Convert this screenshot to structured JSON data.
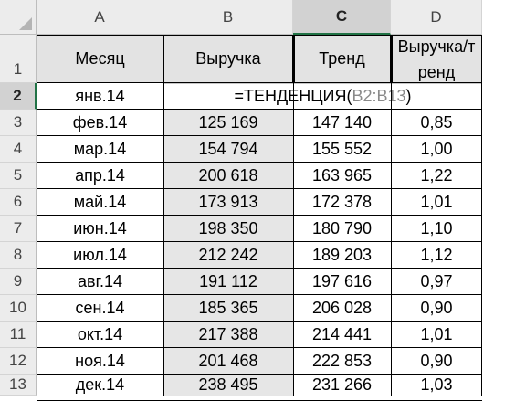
{
  "columns": [
    "A",
    "B",
    "C",
    "D"
  ],
  "rows": [
    "1",
    "2",
    "3",
    "4",
    "5",
    "6",
    "7",
    "8",
    "9",
    "10",
    "11",
    "12",
    "13"
  ],
  "headers": {
    "month": "Месяц",
    "revenue": "Выручка",
    "trend": "Тренд",
    "ratio_line1": "Выручка/т",
    "ratio_line2": "ренд"
  },
  "row2_month": "янв.14",
  "formula": {
    "prefix": "=ТЕНДЕНЦИЯ(",
    "ref": "B2:B13",
    "suffix": ")"
  },
  "data_rows": [
    {
      "month": "фев.14",
      "revenue": "125 169",
      "trend": "147 140",
      "ratio": "0,85"
    },
    {
      "month": "мар.14",
      "revenue": "154 794",
      "trend": "155 552",
      "ratio": "1,00"
    },
    {
      "month": "апр.14",
      "revenue": "200 618",
      "trend": "163 965",
      "ratio": "1,22"
    },
    {
      "month": "май.14",
      "revenue": "173 913",
      "trend": "172 378",
      "ratio": "1,01"
    },
    {
      "month": "июн.14",
      "revenue": "198 350",
      "trend": "180 790",
      "ratio": "1,10"
    },
    {
      "month": "июл.14",
      "revenue": "212 242",
      "trend": "189 203",
      "ratio": "1,12"
    },
    {
      "month": "авг.14",
      "revenue": "191 112",
      "trend": "197 616",
      "ratio": "0,97"
    },
    {
      "month": "сен.14",
      "revenue": "185 365",
      "trend": "206 028",
      "ratio": "0,90"
    },
    {
      "month": "окт.14",
      "revenue": "217 388",
      "trend": "214 441",
      "ratio": "1,01"
    },
    {
      "month": "ноя.14",
      "revenue": "201 468",
      "trend": "222 853",
      "ratio": "0,90"
    },
    {
      "month": "дек.14",
      "revenue": "238 495",
      "trend": "231 266",
      "ratio": "1,03"
    }
  ],
  "selected": {
    "column": "C",
    "row": "2"
  },
  "colors": {
    "header_bg": "#ececec",
    "selected_header_bg": "#d2d2d2",
    "table_header_bg": "#e3e3e3",
    "shaded_column": "#e6e6e6",
    "accent": "#217346"
  }
}
